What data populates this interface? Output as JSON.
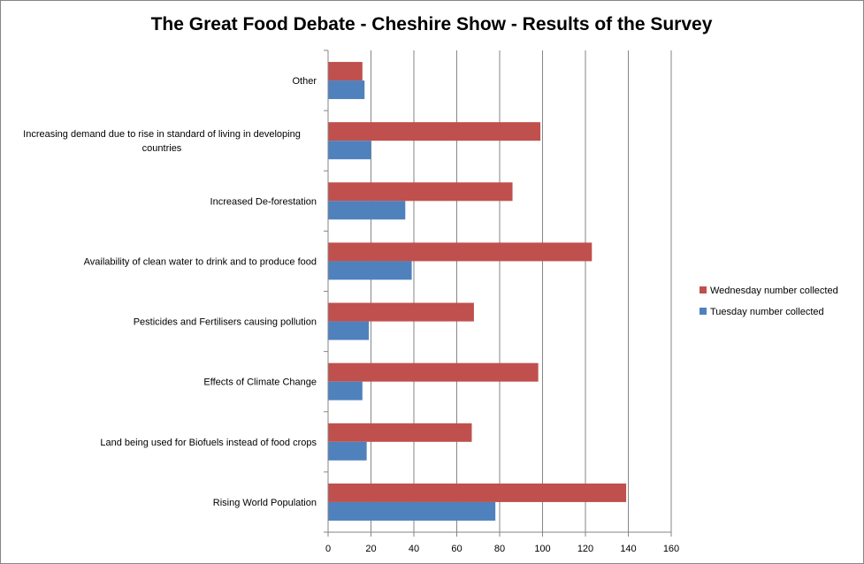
{
  "chart_data": {
    "type": "bar",
    "orientation": "horizontal",
    "title": "The Great Food Debate - Cheshire Show - Results of the Survey",
    "xlabel": "",
    "ylabel": "",
    "xlim": [
      0,
      160
    ],
    "x_ticks": [
      0,
      20,
      40,
      60,
      80,
      100,
      120,
      140,
      160
    ],
    "grid": true,
    "legend_position": "right",
    "categories": [
      [
        "Rising World Population"
      ],
      [
        "Land being used for Biofuels instead of food crops"
      ],
      [
        "Effects of Climate Change"
      ],
      [
        "Pesticides and Fertilisers causing pollution"
      ],
      [
        "Availability of clean water to drink and to produce food"
      ],
      [
        "Increased De-forestation"
      ],
      [
        "Increasing demand due to rise in standard of living in developing",
        "countries"
      ],
      [
        "Other"
      ]
    ],
    "series": [
      {
        "name": "Tuesday number collected",
        "color": "#4F81BD",
        "values": [
          78,
          18,
          16,
          19,
          39,
          36,
          20,
          17
        ]
      },
      {
        "name": "Wednesday number collected",
        "color": "#C0504D",
        "values": [
          139,
          67,
          98,
          68,
          123,
          86,
          99,
          16
        ]
      }
    ]
  }
}
